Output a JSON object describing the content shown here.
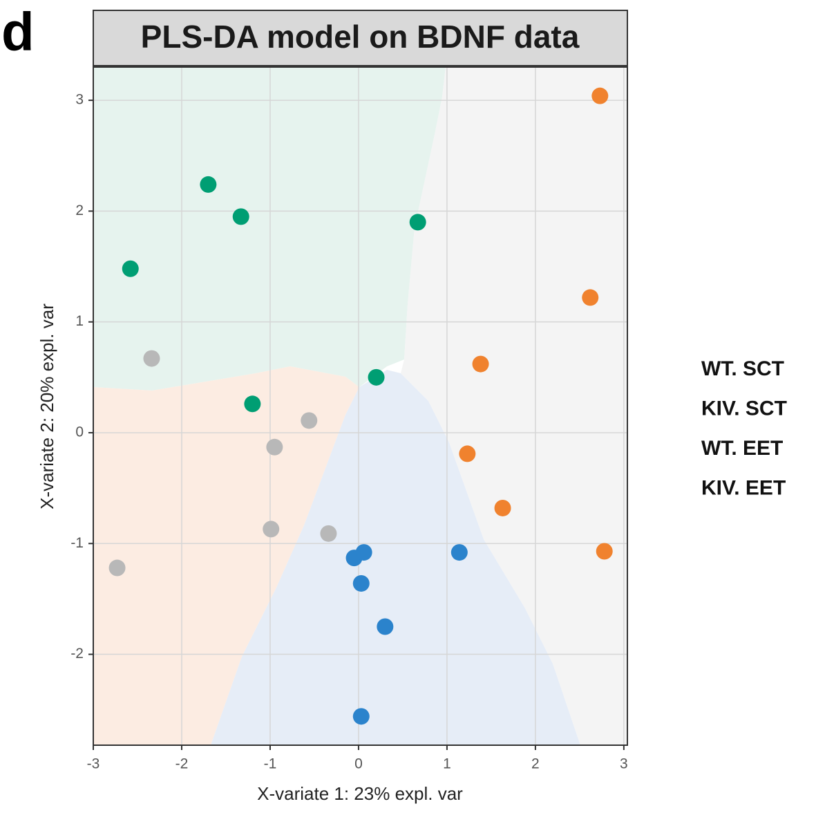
{
  "panel_label": "d",
  "chart_data": {
    "type": "scatter",
    "title": "PLS-DA model on BDNF data",
    "x_label": "X-variate 1: 23% expl. var",
    "y_label": "X-variate 2: 20% expl. var",
    "xlim": [
      -3,
      3.04
    ],
    "ylim": [
      -2.82,
      3.3
    ],
    "xticks": [
      -3,
      -2,
      -1,
      0,
      1,
      2,
      3
    ],
    "yticks": [
      -2,
      -1,
      0,
      1,
      2,
      3
    ],
    "grid": true,
    "legend": "right",
    "series": [
      {
        "name": "WT. SCT",
        "color": "#009e73",
        "x": [
          -1.7,
          -1.33,
          -2.58,
          0.67,
          0.2,
          -1.2
        ],
        "values": [
          2.24,
          1.95,
          1.48,
          1.9,
          0.5,
          0.26
        ]
      },
      {
        "name": "KIV. SCT",
        "color": "#b8b8b8",
        "x": [
          -2.34,
          -0.56,
          -0.95,
          -0.99,
          -0.34,
          -2.73
        ],
        "values": [
          0.67,
          0.11,
          -0.13,
          -0.87,
          -0.91,
          -1.22
        ]
      },
      {
        "name": "WT. EET",
        "color": "#f0822e",
        "x": [
          2.73,
          2.62,
          1.38,
          1.23,
          1.63,
          2.78
        ],
        "values": [
          3.04,
          1.22,
          0.62,
          -0.19,
          -0.68,
          -1.07
        ]
      },
      {
        "name": "KIV. EET",
        "color": "#2b83cc",
        "x": [
          -0.05,
          0.06,
          0.03,
          0.3,
          1.14,
          0.03
        ],
        "values": [
          -1.13,
          -1.08,
          -1.36,
          -1.75,
          -1.08,
          -2.56
        ]
      }
    ]
  }
}
